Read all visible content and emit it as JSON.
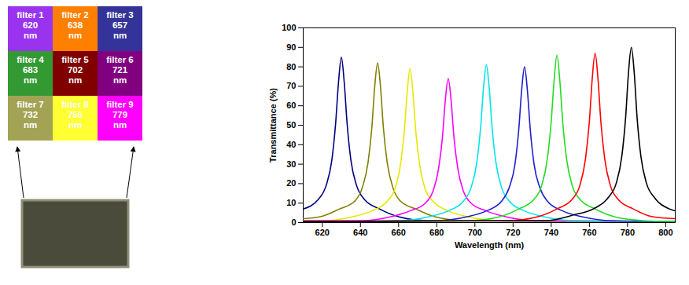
{
  "filter_array": {
    "cells": [
      {
        "lines": [
          "filter 1",
          "620",
          "nm"
        ],
        "color": "#9933ee"
      },
      {
        "lines": [
          "filter 2",
          "638",
          "nm"
        ],
        "color": "#ff8000"
      },
      {
        "lines": [
          "filter 3",
          "657",
          "nm"
        ],
        "color": "#333399"
      },
      {
        "lines": [
          "filter 4",
          "683",
          "nm"
        ],
        "color": "#339933"
      },
      {
        "lines": [
          "filter 5",
          "702",
          "nm"
        ],
        "color": "#800000"
      },
      {
        "lines": [
          "filter 6",
          "721",
          "nm"
        ],
        "color": "#800080"
      },
      {
        "lines": [
          "filter 7",
          "732",
          "nm"
        ],
        "color": "#a3a355"
      },
      {
        "lines": [
          "filter 8",
          "755",
          "nm"
        ],
        "color": "#ffff33"
      },
      {
        "lines": [
          "filter 9",
          "779",
          "nm"
        ],
        "color": "#ff00ff"
      }
    ]
  },
  "chart_data": {
    "type": "line",
    "x_label": "Wavelength (nm)",
    "y_label": "Transmittance (%)",
    "xlim": [
      610,
      805
    ],
    "xticks": [
      620,
      640,
      660,
      680,
      700,
      720,
      740,
      760,
      780,
      800
    ],
    "ylim": [
      0,
      100
    ],
    "yticks": [
      0,
      10,
      20,
      30,
      40,
      50,
      60,
      70,
      80,
      90,
      100
    ],
    "grid": false,
    "series": [
      {
        "color": "#00007f",
        "x": [
          610,
          618,
          622,
          625,
          627,
          628.5,
          630,
          631.5,
          633,
          635,
          638,
          642,
          650,
          660,
          675,
          805
        ],
        "values": [
          7,
          12,
          19,
          32,
          51,
          72,
          85,
          72,
          51,
          32,
          19,
          12,
          7,
          3,
          1,
          0.5
        ]
      },
      {
        "color": "#808000",
        "x": [
          610,
          619,
          629,
          637,
          641,
          644,
          646,
          647.5,
          649,
          650.5,
          652,
          654,
          657,
          661,
          669,
          679,
          694,
          805
        ],
        "values": [
          2,
          3,
          7,
          11,
          18,
          31,
          49,
          70,
          82,
          70,
          49,
          31,
          18,
          11,
          7,
          3,
          1,
          0.5
        ]
      },
      {
        "color": "#e8e800",
        "x": [
          610,
          621,
          636,
          646,
          654,
          658,
          661,
          663,
          664.5,
          666,
          667.5,
          669,
          671,
          674,
          678,
          686,
          696,
          711,
          805
        ],
        "values": [
          1,
          1,
          3,
          6,
          11,
          17,
          30,
          47,
          67,
          79,
          67,
          47,
          30,
          17,
          11,
          6,
          3,
          1,
          0.5
        ]
      },
      {
        "color": "#ff00ff",
        "x": [
          610,
          641,
          656,
          666,
          674,
          678,
          681,
          683,
          684.5,
          686,
          687.5,
          689,
          691,
          694,
          698,
          706,
          716,
          731,
          805
        ],
        "values": [
          1,
          1,
          3,
          6,
          10,
          16,
          28,
          44,
          63,
          74,
          63,
          44,
          28,
          16,
          10,
          6,
          3,
          1,
          0.5
        ]
      },
      {
        "color": "#00e5ee",
        "x": [
          610,
          661,
          676,
          686,
          694,
          698,
          701,
          703,
          704.5,
          706,
          707.5,
          709,
          711,
          714,
          718,
          726,
          736,
          751,
          805
        ],
        "values": [
          0.5,
          1,
          3,
          6,
          11,
          18,
          31,
          49,
          69,
          81,
          69,
          49,
          31,
          18,
          11,
          6,
          3,
          1,
          0.5
        ]
      },
      {
        "color": "#1f1fcc",
        "x": [
          610,
          681,
          696,
          706,
          714,
          718,
          721,
          723,
          724.5,
          726,
          727.5,
          729,
          731,
          734,
          738,
          746,
          756,
          771,
          805
        ],
        "values": [
          0.5,
          1,
          3,
          6,
          11,
          18,
          30,
          48,
          68,
          80,
          68,
          48,
          30,
          18,
          11,
          6,
          3,
          1,
          0.5
        ]
      },
      {
        "color": "#22dd22",
        "x": [
          610,
          698,
          713,
          723,
          731,
          735,
          738,
          740,
          741.5,
          743,
          744.5,
          746,
          748,
          751,
          755,
          763,
          773,
          788,
          805
        ],
        "values": [
          0.5,
          1,
          3,
          7,
          12,
          19,
          33,
          52,
          73,
          86,
          73,
          52,
          33,
          19,
          12,
          7,
          3,
          1,
          0.5
        ]
      },
      {
        "color": "#ff0000",
        "x": [
          610,
          718,
          733,
          743,
          751,
          755,
          758,
          760,
          761.5,
          763,
          764.5,
          766,
          768,
          771,
          775,
          783,
          793,
          805
        ],
        "values": [
          0.5,
          1,
          3,
          7,
          12,
          19,
          33,
          52,
          74,
          87,
          74,
          52,
          33,
          19,
          12,
          7,
          3,
          2
        ]
      },
      {
        "color": "#000000",
        "x": [
          610,
          737,
          752,
          762,
          770,
          774,
          777,
          779,
          780.5,
          782,
          783.5,
          785,
          787,
          790,
          794,
          802,
          805
        ],
        "values": [
          0.5,
          1,
          4,
          7,
          13,
          20,
          34,
          54,
          77,
          90,
          77,
          54,
          34,
          20,
          13,
          7,
          6
        ]
      }
    ]
  }
}
